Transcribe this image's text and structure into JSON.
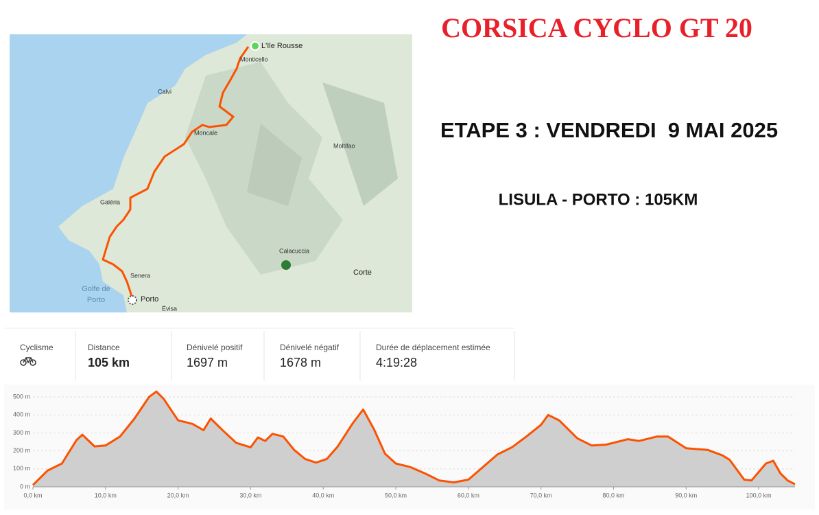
{
  "header": {
    "title": "CORSICA CYCLO GT 20",
    "stage": "ETAPE 3 : VENDREDI  9 MAI 2025",
    "route": "LISULA - PORTO : 105KM"
  },
  "map": {
    "labels": [
      "L'Ile Rousse",
      "Monticello",
      "Calvi",
      "Moncale",
      "Moltifao",
      "Galéria",
      "Calacuccia",
      "Corte",
      "Golfe de",
      "Porto",
      "Senera",
      "Porto",
      "Évisa"
    ]
  },
  "stats": [
    {
      "label": "Cyclisme"
    },
    {
      "label": "Distance",
      "value": "105 km"
    },
    {
      "label": "Dénivelé positif",
      "value": "1697 m"
    },
    {
      "label": "Dénivelé négatif",
      "value": "1678 m"
    },
    {
      "label": "Durée de déplacement estimée",
      "value": "4:19:28"
    }
  ],
  "chart_data": {
    "type": "area",
    "color": "#fc5200",
    "fill": "#cfcfcf",
    "grid": true,
    "x": [
      0,
      2,
      4,
      6,
      6.8,
      8.5,
      10,
      12,
      14,
      16,
      17,
      18,
      20,
      22,
      23.5,
      24.5,
      26,
      28,
      30,
      31,
      32,
      33,
      34.5,
      36,
      37.5,
      39,
      40.5,
      42,
      44,
      45.5,
      47,
      48.5,
      50,
      52,
      54,
      56,
      58,
      60,
      62,
      64,
      66,
      68,
      70,
      71,
      72.5,
      75,
      77,
      79,
      82,
      83.5,
      86,
      87.5,
      90,
      93,
      95,
      96,
      98,
      99,
      101,
      102,
      103,
      104,
      105
    ],
    "values": [
      10,
      90,
      130,
      260,
      290,
      225,
      230,
      280,
      380,
      500,
      530,
      490,
      370,
      350,
      315,
      380,
      320,
      245,
      220,
      275,
      255,
      295,
      280,
      205,
      155,
      135,
      155,
      225,
      350,
      430,
      320,
      185,
      130,
      110,
      75,
      35,
      25,
      40,
      110,
      180,
      220,
      280,
      345,
      400,
      370,
      270,
      230,
      235,
      265,
      255,
      280,
      280,
      215,
      205,
      175,
      150,
      40,
      35,
      130,
      145,
      75,
      35,
      15
    ],
    "xlim": [
      0,
      105
    ],
    "ylim": [
      0,
      550
    ],
    "xticks": [
      {
        "value": 0,
        "label": "0,0 km"
      },
      {
        "value": 10,
        "label": "10,0 km"
      },
      {
        "value": 20,
        "label": "20,0 km"
      },
      {
        "value": 30,
        "label": "30,0 km"
      },
      {
        "value": 40,
        "label": "40,0 km"
      },
      {
        "value": 50,
        "label": "50,0 km"
      },
      {
        "value": 60,
        "label": "60,0 km"
      },
      {
        "value": 70,
        "label": "70,0 km"
      },
      {
        "value": 80,
        "label": "80,0 km"
      },
      {
        "value": 90,
        "label": "90,0 km"
      },
      {
        "value": 100,
        "label": "100,0 km"
      }
    ],
    "yticks": [
      {
        "value": 0,
        "label": "0 m"
      },
      {
        "value": 100,
        "label": "100 m"
      },
      {
        "value": 200,
        "label": "200 m"
      },
      {
        "value": 300,
        "label": "300 m"
      },
      {
        "value": 400,
        "label": "400 m"
      },
      {
        "value": 500,
        "label": "500 m"
      }
    ]
  }
}
